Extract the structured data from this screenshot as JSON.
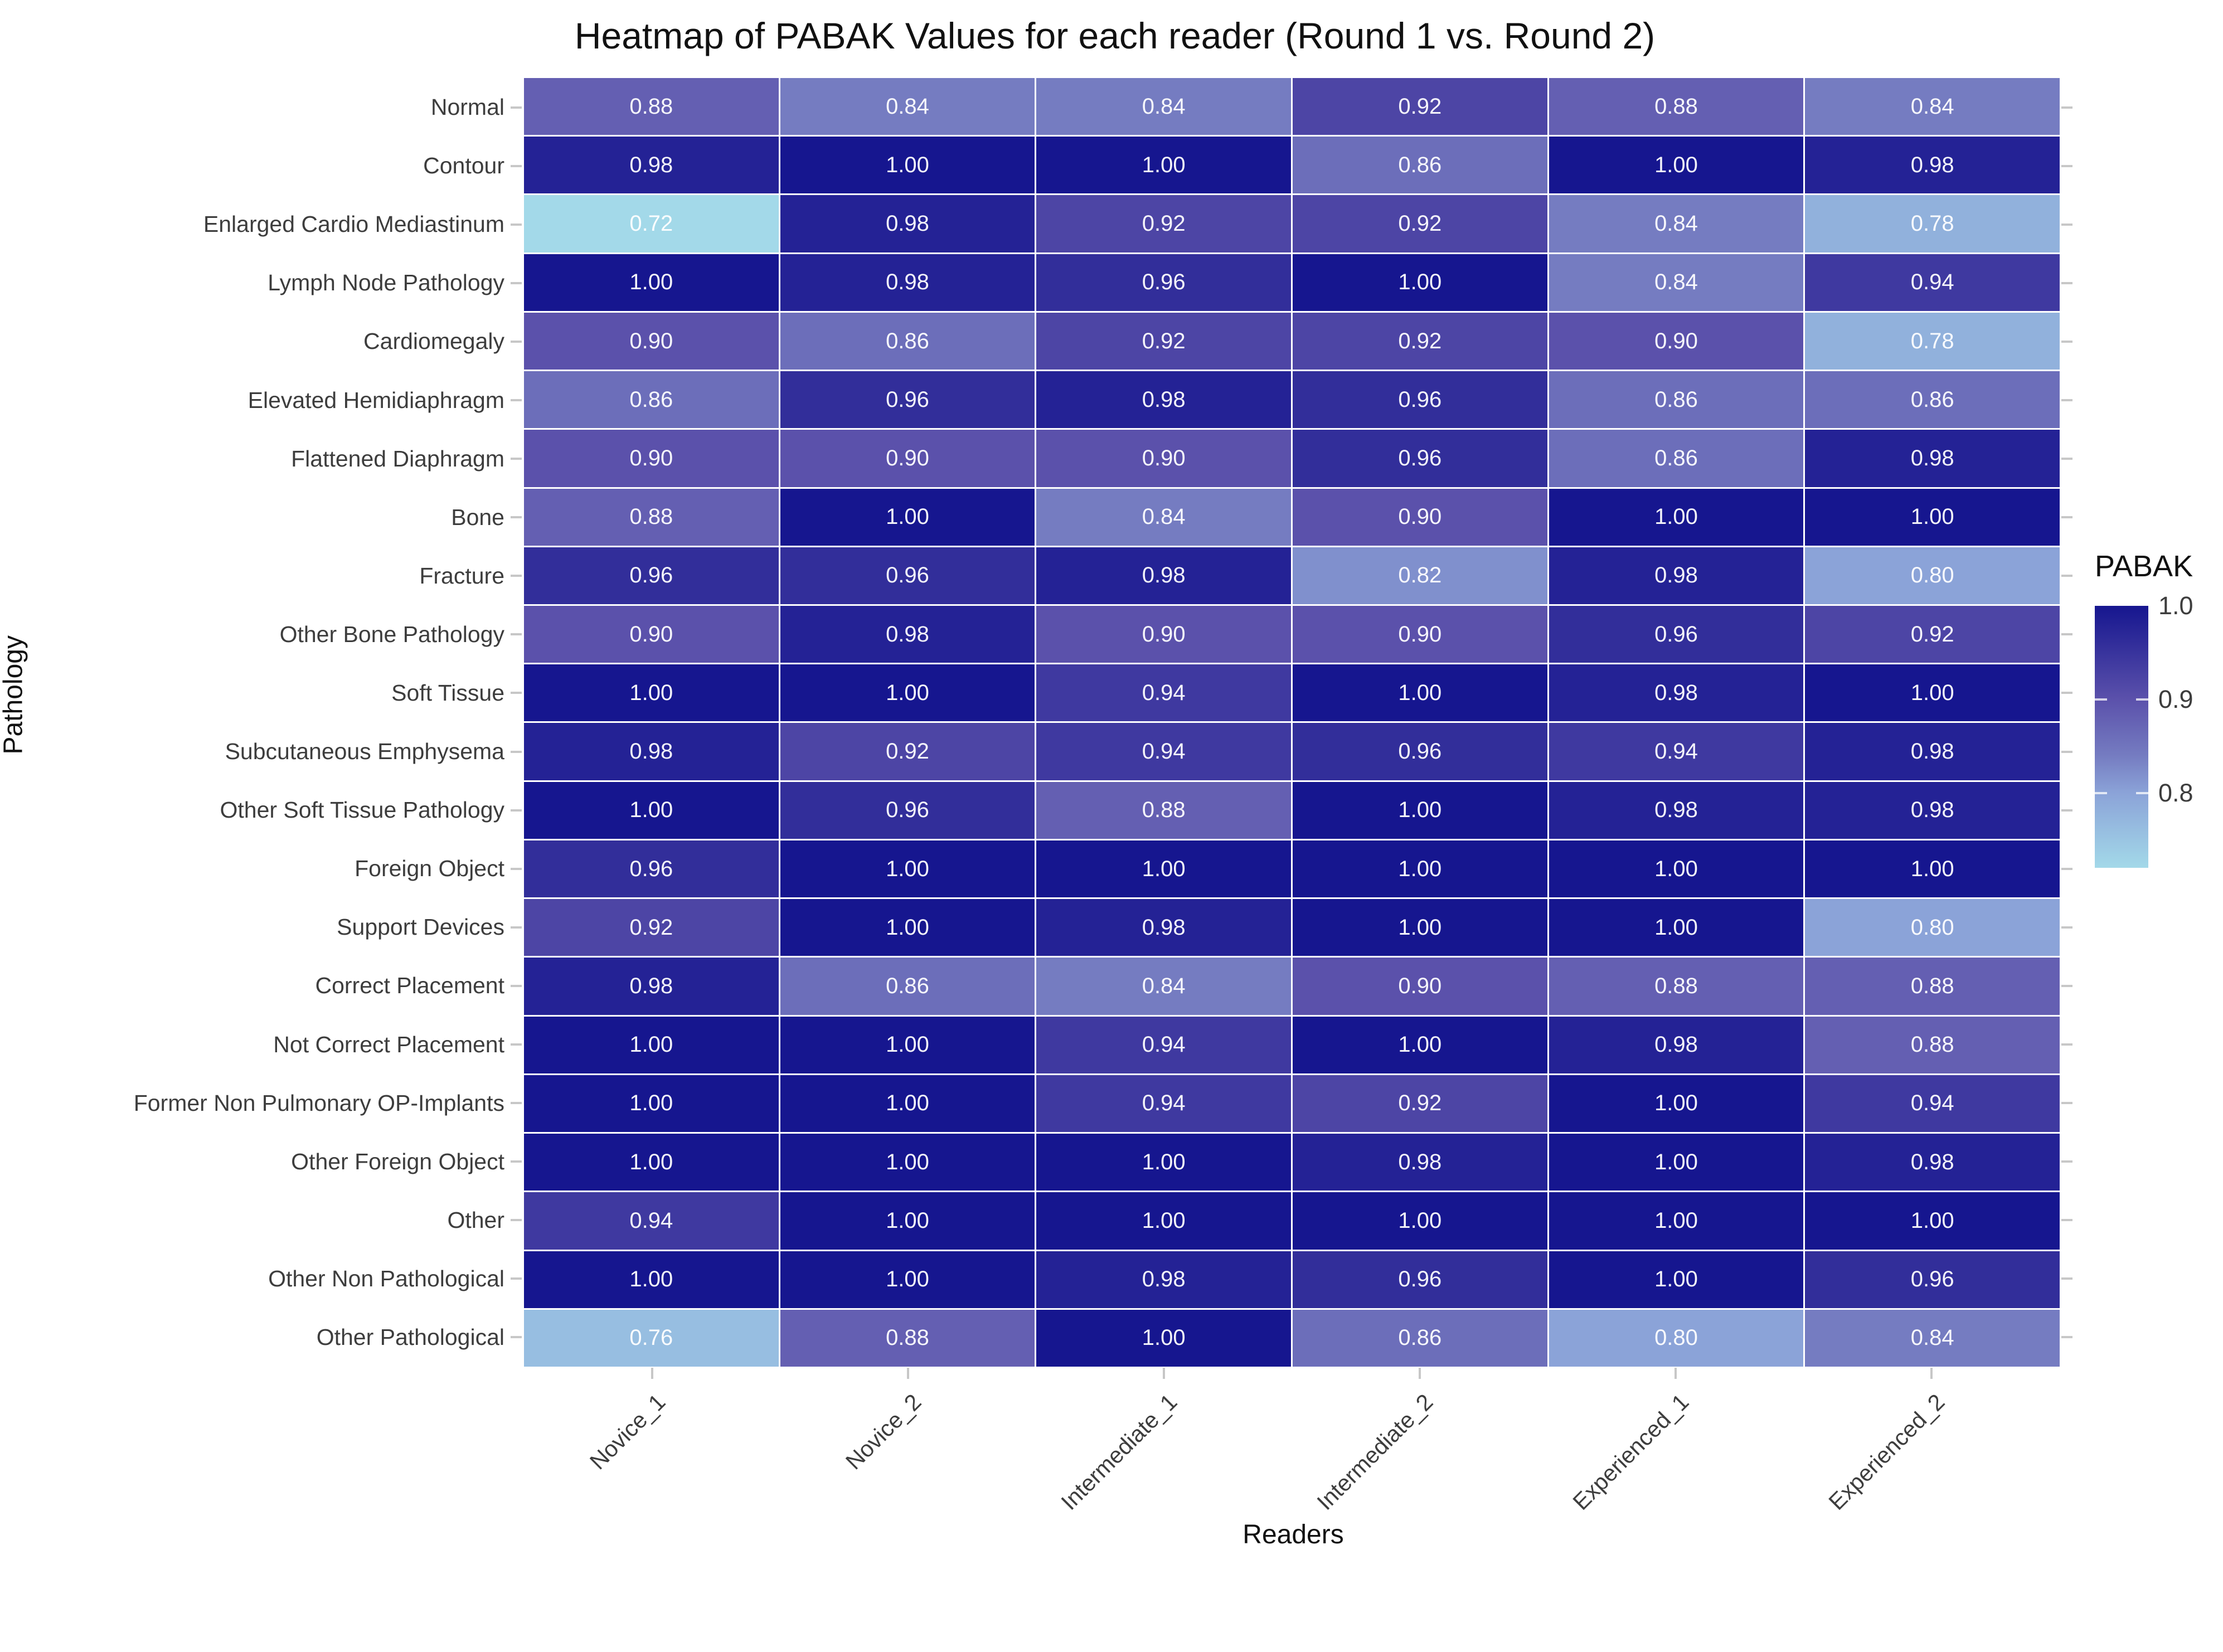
{
  "title": "Heatmap of PABAK Values for each reader (Round 1 vs. Round 2)",
  "chart_data": {
    "type": "heatmap",
    "title": "Heatmap of PABAK Values for each reader (Round 1 vs. Round 2)",
    "xlabel": "Readers",
    "ylabel": "Pathology",
    "x_categories": [
      "Novice_1",
      "Novice_2",
      "Intermediate_1",
      "Intermediate_2",
      "Experienced_1",
      "Experienced_2"
    ],
    "y_categories": [
      "Normal",
      "Contour",
      "Enlarged Cardio Mediastinum",
      "Lymph Node Pathology",
      "Cardiomegaly",
      "Elevated Hemidiaphragm",
      "Flattened Diaphragm",
      "Bone",
      "Fracture",
      "Other Bone Pathology",
      "Soft Tissue",
      "Subcutaneous Emphysema",
      "Other Soft Tissue Pathology",
      "Foreign Object",
      "Support Devices",
      "Correct Placement",
      "Not Correct Placement",
      "Former Non Pulmonary OP-Implants",
      "Other Foreign Object",
      "Other",
      "Other Non Pathological",
      "Other Pathological"
    ],
    "values": [
      [
        0.88,
        0.84,
        0.84,
        0.92,
        0.88,
        0.84
      ],
      [
        0.98,
        1.0,
        1.0,
        0.86,
        1.0,
        0.98
      ],
      [
        0.72,
        0.98,
        0.92,
        0.92,
        0.84,
        0.78
      ],
      [
        1.0,
        0.98,
        0.96,
        1.0,
        0.84,
        0.94
      ],
      [
        0.9,
        0.86,
        0.92,
        0.92,
        0.9,
        0.78
      ],
      [
        0.86,
        0.96,
        0.98,
        0.96,
        0.86,
        0.86
      ],
      [
        0.9,
        0.9,
        0.9,
        0.96,
        0.86,
        0.98
      ],
      [
        0.88,
        1.0,
        0.84,
        0.9,
        1.0,
        1.0
      ],
      [
        0.96,
        0.96,
        0.98,
        0.82,
        0.98,
        0.8
      ],
      [
        0.9,
        0.98,
        0.9,
        0.9,
        0.96,
        0.92
      ],
      [
        1.0,
        1.0,
        0.94,
        1.0,
        0.98,
        1.0
      ],
      [
        0.98,
        0.92,
        0.94,
        0.96,
        0.94,
        0.98
      ],
      [
        1.0,
        0.96,
        0.88,
        1.0,
        0.98,
        0.98
      ],
      [
        0.96,
        1.0,
        1.0,
        1.0,
        1.0,
        1.0
      ],
      [
        0.92,
        1.0,
        0.98,
        1.0,
        1.0,
        0.8
      ],
      [
        0.98,
        0.86,
        0.84,
        0.9,
        0.88,
        0.88
      ],
      [
        1.0,
        1.0,
        0.94,
        1.0,
        0.98,
        0.88
      ],
      [
        1.0,
        1.0,
        0.94,
        0.92,
        1.0,
        0.94
      ],
      [
        1.0,
        1.0,
        1.0,
        0.98,
        1.0,
        0.98
      ],
      [
        0.94,
        1.0,
        1.0,
        1.0,
        1.0,
        1.0
      ],
      [
        1.0,
        1.0,
        0.98,
        0.96,
        1.0,
        0.96
      ],
      [
        0.76,
        0.88,
        1.0,
        0.86,
        0.8,
        0.84
      ]
    ],
    "value_format_decimals": 2,
    "legend": {
      "title": "PABAK",
      "tick_labels": [
        "1.0",
        "0.9",
        "0.8"
      ],
      "tick_values": [
        1.0,
        0.9,
        0.8
      ],
      "range": [
        0.72,
        1.0
      ]
    },
    "color_scale": {
      "stops": [
        {
          "v": 0.72,
          "c": "#a3d9e9"
        },
        {
          "v": 0.8,
          "c": "#8ba3d8"
        },
        {
          "v": 0.84,
          "c": "#757cc1"
        },
        {
          "v": 0.9,
          "c": "#5b51ab"
        },
        {
          "v": 1.0,
          "c": "#16168f"
        }
      ]
    },
    "grid": false,
    "legend_position": "right"
  }
}
